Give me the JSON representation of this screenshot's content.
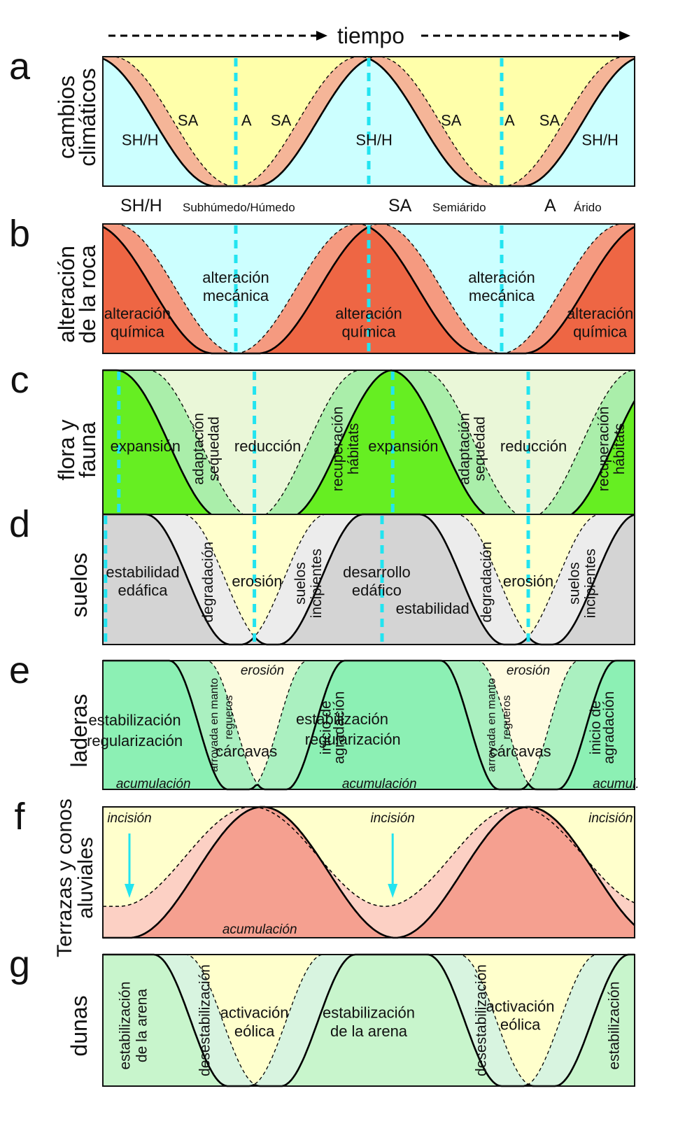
{
  "header": {
    "time_label": "tiempo"
  },
  "colors": {
    "marker": "#22e4f0",
    "outline": "#000000"
  },
  "legend": {
    "items": [
      {
        "abbr": "SH/H",
        "text": "Subhúmedo/Húmedo"
      },
      {
        "abbr": "SA",
        "text": "Semiárido"
      },
      {
        "abbr": "A",
        "text": "Árido"
      }
    ]
  },
  "panels": [
    {
      "id": "a",
      "letter": "a",
      "title_lines": [
        "cambios",
        "climáticos"
      ],
      "colors": {
        "low": "#ccffff",
        "band": "#f5b598",
        "high": "#ffffaa"
      },
      "labels": [
        {
          "text": "SH/H",
          "fx": 0.07,
          "fy": 0.64
        },
        {
          "text": "SA",
          "fx": 0.16,
          "fy": 0.49
        },
        {
          "text": "A",
          "fx": 0.27,
          "fy": 0.49
        },
        {
          "text": "SA",
          "fx": 0.335,
          "fy": 0.49
        },
        {
          "text": "SH/H",
          "fx": 0.51,
          "fy": 0.64
        },
        {
          "text": "SA",
          "fx": 0.655,
          "fy": 0.49
        },
        {
          "text": "A",
          "fx": 0.765,
          "fy": 0.49
        },
        {
          "text": "SA",
          "fx": 0.84,
          "fy": 0.49
        },
        {
          "text": "SH/H",
          "fx": 0.935,
          "fy": 0.64
        }
      ]
    },
    {
      "id": "b",
      "letter": "b",
      "title_lines": [
        "alteración",
        "de la roca"
      ],
      "colors": {
        "low": "#ee6644",
        "band": "#f59a80",
        "high": "#ccffff"
      },
      "labels": [
        {
          "text": "alteración",
          "fx": 0.065,
          "fy": 0.69
        },
        {
          "text": "química",
          "fx": 0.065,
          "fy": 0.83
        },
        {
          "text": "alteración",
          "fx": 0.25,
          "fy": 0.41
        },
        {
          "text": "mecánica",
          "fx": 0.25,
          "fy": 0.55
        },
        {
          "text": "alteración",
          "fx": 0.5,
          "fy": 0.69
        },
        {
          "text": "química",
          "fx": 0.5,
          "fy": 0.83
        },
        {
          "text": "alteración",
          "fx": 0.75,
          "fy": 0.41
        },
        {
          "text": "mecánica",
          "fx": 0.75,
          "fy": 0.55
        },
        {
          "text": "alteración",
          "fx": 0.935,
          "fy": 0.69
        },
        {
          "text": "química",
          "fx": 0.935,
          "fy": 0.83
        }
      ]
    },
    {
      "id": "c",
      "letter": "c",
      "title_lines": [
        "flora y",
        "fauna"
      ],
      "colors": {
        "low": "#66ee22",
        "band": "#aaeeaa",
        "high": "#eaf7d8"
      },
      "labels": [
        {
          "text": "expansión",
          "fx": 0.08,
          "fy": 0.51
        },
        {
          "text": "reducción",
          "fx": 0.31,
          "fy": 0.51
        },
        {
          "text": "expansión",
          "fx": 0.565,
          "fy": 0.51
        },
        {
          "text": "reducción",
          "fx": 0.81,
          "fy": 0.51
        }
      ],
      "vlabels": [
        {
          "text": "adaptación",
          "fx": 0.178,
          "fy": 0.53
        },
        {
          "text": "sequedad",
          "fx": 0.207,
          "fy": 0.53
        },
        {
          "text": "recuperación",
          "fx": 0.44,
          "fy": 0.53
        },
        {
          "text": "hábitats",
          "fx": 0.47,
          "fy": 0.53
        },
        {
          "text": "adaptación",
          "fx": 0.678,
          "fy": 0.53
        },
        {
          "text": "sequedad",
          "fx": 0.707,
          "fy": 0.53
        },
        {
          "text": "recuperación",
          "fx": 0.94,
          "fy": 0.53
        },
        {
          "text": "hábitats",
          "fx": 0.97,
          "fy": 0.53
        }
      ]
    },
    {
      "id": "d",
      "letter": "d",
      "title_lines": [
        "suelos"
      ],
      "colors": {
        "low": "#d4d4d4",
        "band": "#ececec",
        "high": "#ffffcc"
      },
      "labels": [
        {
          "text": "estabilidad",
          "fx": 0.075,
          "fy": 0.44
        },
        {
          "text": "edáfica",
          "fx": 0.075,
          "fy": 0.58
        },
        {
          "text": "erosión",
          "fx": 0.29,
          "fy": 0.51
        },
        {
          "text": "desarrollo",
          "fx": 0.515,
          "fy": 0.44
        },
        {
          "text": "edáfico",
          "fx": 0.515,
          "fy": 0.58
        },
        {
          "text": "estabilidad",
          "fx": 0.62,
          "fy": 0.72
        },
        {
          "text": "erosión",
          "fx": 0.8,
          "fy": 0.51
        }
      ],
      "vlabels": [
        {
          "text": "degradación",
          "fx": 0.196,
          "fy": 0.52
        },
        {
          "text": "suelos",
          "fx": 0.37,
          "fy": 0.53
        },
        {
          "text": "incipientes",
          "fx": 0.4,
          "fy": 0.53
        },
        {
          "text": "degradación",
          "fx": 0.72,
          "fy": 0.52
        },
        {
          "text": "suelos",
          "fx": 0.885,
          "fy": 0.53
        },
        {
          "text": "incipientes",
          "fx": 0.915,
          "fy": 0.53
        }
      ]
    },
    {
      "id": "e",
      "letter": "e",
      "title_lines": [
        "laderas"
      ],
      "colors": {
        "low": "#8cf0b4",
        "band": "#aaf0c0",
        "high": "#fffbe0"
      },
      "labels": [
        {
          "text": "estabilización",
          "fx": 0.06,
          "fy": 0.46
        },
        {
          "text": "regularización",
          "fx": 0.06,
          "fy": 0.62
        },
        {
          "text": "cárcavas",
          "fx": 0.27,
          "fy": 0.7
        },
        {
          "text": "estabilización",
          "fx": 0.45,
          "fy": 0.45
        },
        {
          "text": "regularización",
          "fx": 0.47,
          "fy": 0.61
        },
        {
          "text": "cárcavas",
          "fx": 0.785,
          "fy": 0.7
        }
      ],
      "ilabels": [
        {
          "text": "erosión",
          "fx": 0.3,
          "fy": 0.07
        },
        {
          "text": "acumulación",
          "fx": 0.095,
          "fy": 0.95
        },
        {
          "text": "acumulación",
          "fx": 0.52,
          "fy": 0.95
        },
        {
          "text": "erosión",
          "fx": 0.8,
          "fy": 0.07
        },
        {
          "text": "acumul.",
          "fx": 0.965,
          "fy": 0.95
        }
      ],
      "vlabels": [
        {
          "text": "arroyada en manto",
          "fx": 0.205,
          "fy": 0.5,
          "small": true
        },
        {
          "text": "regueros",
          "fx": 0.233,
          "fy": 0.44,
          "small": true
        },
        {
          "text": "inicio de",
          "fx": 0.418,
          "fy": 0.52
        },
        {
          "text": "agradación",
          "fx": 0.443,
          "fy": 0.52
        },
        {
          "text": "arroyada en manto",
          "fx": 0.727,
          "fy": 0.5,
          "small": true
        },
        {
          "text": "regueros",
          "fx": 0.755,
          "fy": 0.44,
          "small": true
        },
        {
          "text": "inicio de",
          "fx": 0.925,
          "fy": 0.52
        },
        {
          "text": "agradación",
          "fx": 0.95,
          "fy": 0.52
        }
      ]
    },
    {
      "id": "f",
      "letter": "f",
      "title_lines": [
        "Terrazas y conos",
        "aluviales"
      ],
      "colors": {
        "low": "#f5a090",
        "band": "#fcd0c4",
        "high": "#ffffcc"
      },
      "ilabels": [
        {
          "text": "incisión",
          "fx": 0.05,
          "fy": 0.08
        },
        {
          "text": "incisión",
          "fx": 0.545,
          "fy": 0.08
        },
        {
          "text": "incisión",
          "fx": 0.955,
          "fy": 0.08
        },
        {
          "text": "acumulación",
          "fx": 0.295,
          "fy": 0.93
        }
      ],
      "arrows": [
        {
          "fx": 0.05
        },
        {
          "fx": 0.545
        }
      ]
    },
    {
      "id": "g",
      "letter": "g",
      "title_lines": [
        "dunas"
      ],
      "colors": {
        "low": "#c8f5cc",
        "band": "#d8f4e0",
        "high": "#ffffcc"
      },
      "labels": [
        {
          "text": "activación",
          "fx": 0.285,
          "fy": 0.44
        },
        {
          "text": "eólica",
          "fx": 0.285,
          "fy": 0.58
        },
        {
          "text": "estabilización",
          "fx": 0.5,
          "fy": 0.44
        },
        {
          "text": "de la arena",
          "fx": 0.5,
          "fy": 0.58
        },
        {
          "text": "activación",
          "fx": 0.785,
          "fy": 0.39
        },
        {
          "text": "eólica",
          "fx": 0.785,
          "fy": 0.53
        }
      ],
      "vlabels": [
        {
          "text": "estabilización",
          "fx": 0.04,
          "fy": 0.54
        },
        {
          "text": "de la arena",
          "fx": 0.072,
          "fy": 0.54
        },
        {
          "text": "desestabilización",
          "fx": 0.19,
          "fy": 0.5
        },
        {
          "text": "desestabilización",
          "fx": 0.71,
          "fy": 0.5
        },
        {
          "text": "estabilización",
          "fx": 0.96,
          "fy": 0.54
        }
      ]
    }
  ]
}
